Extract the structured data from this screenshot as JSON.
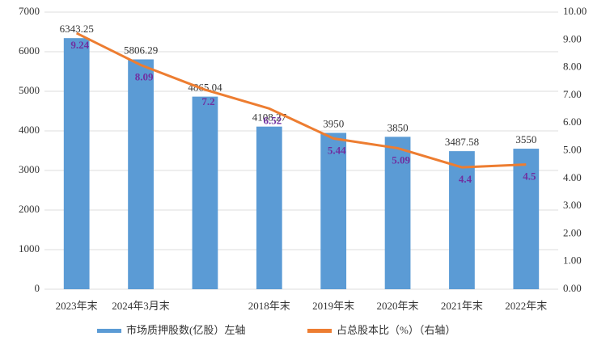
{
  "chart_data": {
    "type": "bar",
    "categories": [
      "2023年末",
      "2024年3月末",
      null,
      "2018年末",
      "2019年末",
      "2020年末",
      "2021年末",
      "2022年末"
    ],
    "series": [
      {
        "name": "市场质押股数(亿股）左轴",
        "color": "#5b9bd5",
        "values": [
          6343.25,
          5806.29,
          4865.04,
          4108.27,
          3950,
          3850,
          3487.58,
          3550
        ]
      },
      {
        "name": "占总股本比（%）（右轴）",
        "color": "#ed7d31",
        "axis": "y2",
        "values": [
          9.24,
          8.09,
          7.2,
          6.52,
          5.44,
          5.09,
          4.4,
          4.5
        ]
      }
    ],
    "ylim": [
      0,
      7000
    ],
    "yticks": [
      0,
      1000,
      2000,
      3000,
      4000,
      5000,
      6000,
      7000
    ],
    "y2lim": [
      0,
      10
    ],
    "y2ticks": [
      {
        "value": 0,
        "label": "0.00"
      },
      {
        "value": 1,
        "label": "1.00"
      },
      {
        "value": 2,
        "label": "2.00"
      },
      {
        "value": 3,
        "label": "3.00"
      },
      {
        "value": 4,
        "label": "4.00"
      },
      {
        "value": 5,
        "label": "5.00"
      },
      {
        "value": 6,
        "label": "6.00"
      },
      {
        "value": 7,
        "label": "7.00"
      },
      {
        "value": 8,
        "label": "8.00"
      },
      {
        "value": 9,
        "label": "9.00"
      },
      {
        "value": 10,
        "label": "10.00"
      }
    ],
    "grid": true
  }
}
